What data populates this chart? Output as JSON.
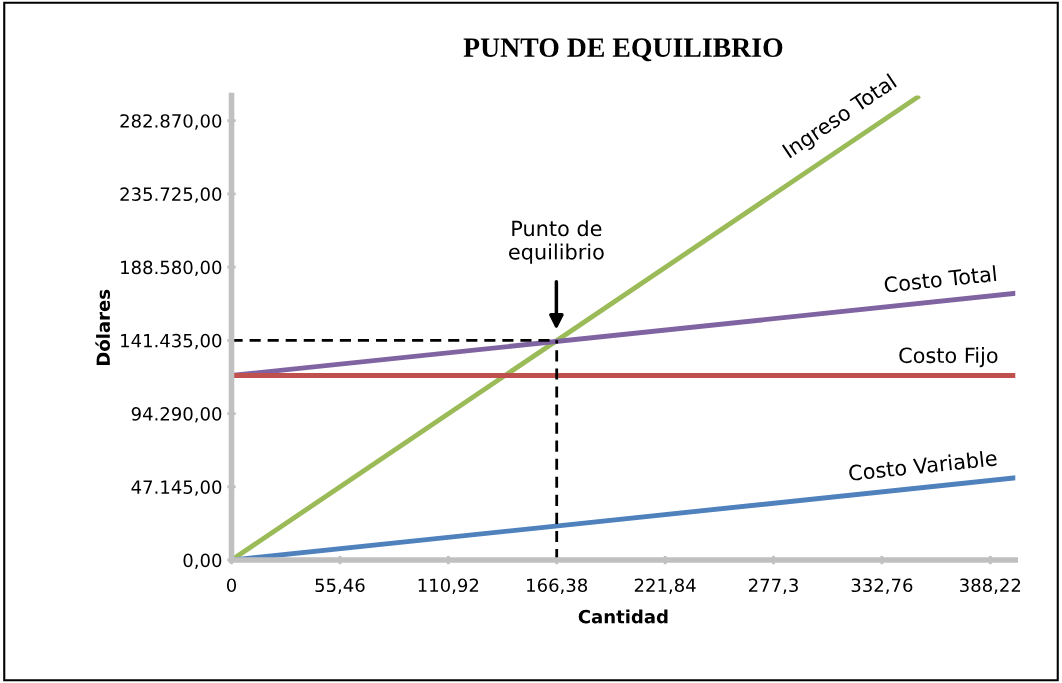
{
  "chart_data": {
    "type": "line",
    "title": "PUNTO DE EQUILIBRIO",
    "xlabel": "Cantidad",
    "ylabel": "Dólares",
    "xlim": [
      0,
      401
    ],
    "ylim": [
      0,
      299000
    ],
    "xticks": [
      0,
      {
        "value": 55.46,
        "label": "55,46"
      },
      {
        "value": 110.92,
        "label": "110,92"
      },
      {
        "value": 166.38,
        "label": "166,38"
      },
      {
        "value": 221.84,
        "label": "221,84"
      },
      {
        "value": 277.3,
        "label": "277,3"
      },
      {
        "value": 332.76,
        "label": "332,76"
      },
      {
        "value": 388.22,
        "label": "388,22"
      }
    ],
    "yticks": [
      {
        "value": 0,
        "label": "0,00"
      },
      {
        "value": 47145,
        "label": "47.145,00"
      },
      {
        "value": 94290,
        "label": "94.290,00"
      },
      {
        "value": 141435,
        "label": "141.435,00"
      },
      {
        "value": 188580,
        "label": "188.580,00"
      },
      {
        "value": 235725,
        "label": "235.725,00"
      },
      {
        "value": 282870,
        "label": "282.870,00"
      }
    ],
    "grid": false,
    "legend": false,
    "marker": "none",
    "series": [
      {
        "name": "Ingreso Total",
        "color": "#9bbb59",
        "x": [
          0,
          351
        ],
        "values": [
          0,
          298000
        ]
      },
      {
        "name": "Costo Total",
        "color": "#8064a2",
        "x": [
          0,
          401
        ],
        "values": [
          118800,
          171700
        ]
      },
      {
        "name": "Costo Fijo",
        "color": "#c0504d",
        "x": [
          0,
          401
        ],
        "values": [
          118800,
          118800
        ]
      },
      {
        "name": "Costo Variable",
        "color": "#4f81bd",
        "x": [
          0,
          401
        ],
        "values": [
          0,
          52900
        ]
      },
      {
        "color": "#000000",
        "line_style": "dashed",
        "x": [
          0,
          166.38
        ],
        "values": [
          141435,
          141435
        ]
      },
      {
        "color": "#000000",
        "line_style": "dashed",
        "x": [
          166.38,
          166.38
        ],
        "values": [
          0,
          141435
        ]
      }
    ],
    "annotations": [
      "Punto de\nequilibrio"
    ]
  }
}
